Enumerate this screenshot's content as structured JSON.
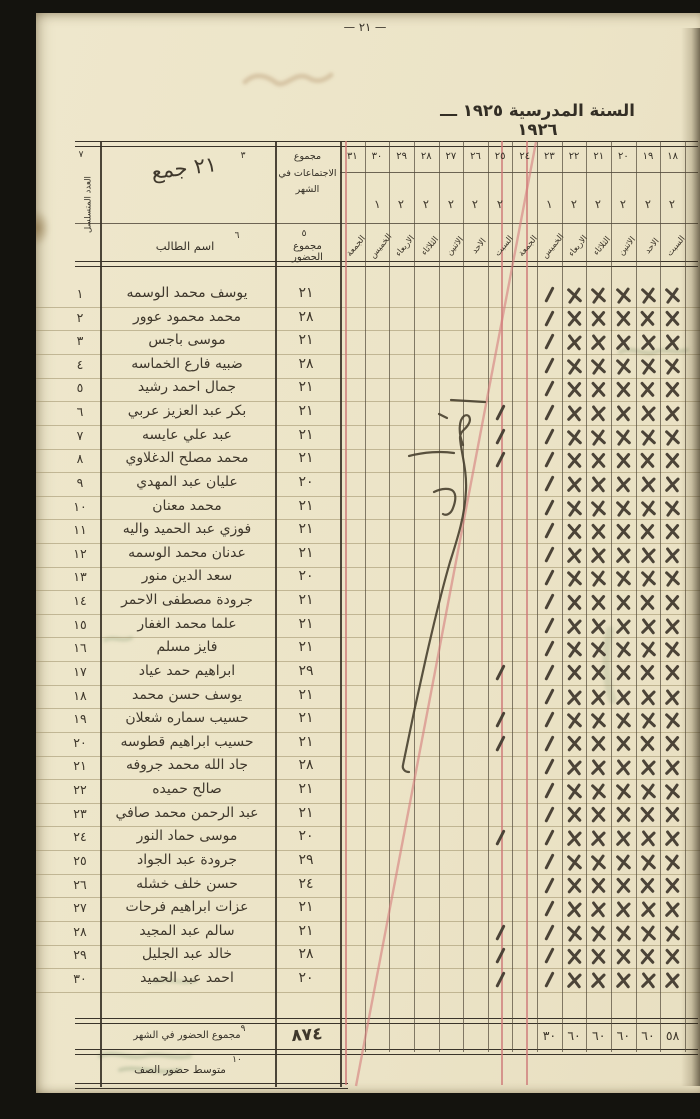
{
  "page": {
    "number_label": "— ٢١ —",
    "title": "السنة المدرسية ١٩٢٥ ـــ ١٩٢٦"
  },
  "colors": {
    "paper": "#ece4c7",
    "ink": "#4b4337",
    "ruling_red": "#cd7676",
    "scan_border": "#14130e"
  },
  "table": {
    "serial_header": {
      "footnote": "٧",
      "label": "العدد المتسلسل"
    },
    "month_cell": {
      "footnote": "٣",
      "value": "٢١ جمع"
    },
    "meetings_header": {
      "label": "مجموع الاجتماعات في الشهر"
    },
    "name_header": {
      "footnote": "٦",
      "label": "اسم الطالب"
    },
    "attendance_header": {
      "footnote": "٥",
      "label": "مجموع الحضور"
    },
    "day_columns": [
      "٣١",
      "٣٠",
      "٢٩",
      "٢٨",
      "٢٧",
      "٢٦",
      "٢٥",
      "٢٤",
      "٢٣",
      "٢٢",
      "٢١",
      "٢٠",
      "١٩",
      "١٨"
    ],
    "week_marks": [
      "",
      "١",
      "٢",
      "٢",
      "٢",
      "٢",
      "٢",
      "",
      "١",
      "٢",
      "٢",
      "٢",
      "٢",
      "٢"
    ],
    "weekday_names": [
      "الجمعة",
      "الخميس",
      "الاربعاء",
      "الثلاثاء",
      "الاثنين",
      "الاحد",
      "السبت",
      "الجمعة",
      "الخميس",
      "الاربعاء",
      "الثلاثاء",
      "الاثنين",
      "الاحد",
      "السبت"
    ],
    "mark_legend": {
      "slash": "/",
      "x": "✕"
    },
    "rows": [
      {
        "serial": "١",
        "name": "يوسف محمد الوسمه",
        "total": "٢١",
        "slash_days": [
          "٢٣"
        ],
        "x_days": [
          "٢٢",
          "٢١",
          "٢٠",
          "١٩",
          "١٨"
        ]
      },
      {
        "serial": "٢",
        "name": "محمد محمود عوور",
        "total": "٢٨",
        "slash_days": [
          "٢٣"
        ],
        "x_days": [
          "٢٢",
          "٢١",
          "٢٠",
          "١٩",
          "١٨"
        ]
      },
      {
        "serial": "٣",
        "name": "موسى باجس",
        "total": "٢١",
        "slash_days": [
          "٢٣"
        ],
        "x_days": [
          "٢٢",
          "٢١",
          "٢٠",
          "١٩",
          "١٨"
        ]
      },
      {
        "serial": "٤",
        "name": "ضبيه فارع الخماسه",
        "total": "٢٨",
        "slash_days": [
          "٢٣"
        ],
        "x_days": [
          "٢٢",
          "٢١",
          "٢٠",
          "١٩",
          "١٨"
        ]
      },
      {
        "serial": "٥",
        "name": "جمال احمد رشيد",
        "total": "٢١",
        "slash_days": [
          "٢٣"
        ],
        "x_days": [
          "٢٢",
          "٢١",
          "٢٠",
          "١٩",
          "١٨"
        ]
      },
      {
        "serial": "٦",
        "name": "بكر عبد العزيز عربي",
        "total": "٢١",
        "slash_days": [
          "٢٥",
          "٢٣"
        ],
        "x_days": [
          "٢٢",
          "٢١",
          "٢٠",
          "١٩",
          "١٨"
        ]
      },
      {
        "serial": "٧",
        "name": "عبد علي عايسه",
        "total": "٢١",
        "slash_days": [
          "٢٥",
          "٢٣"
        ],
        "x_days": [
          "٢٢",
          "٢١",
          "٢٠",
          "١٩",
          "١٨"
        ]
      },
      {
        "serial": "٨",
        "name": "محمد مصلح الدغلاوي",
        "total": "٢١",
        "slash_days": [
          "٢٥",
          "٢٣"
        ],
        "x_days": [
          "٢٢",
          "٢١",
          "٢٠",
          "١٩",
          "١٨"
        ]
      },
      {
        "serial": "٩",
        "name": "عليان عبد المهدي",
        "total": "٢٠",
        "slash_days": [
          "٢٣"
        ],
        "x_days": [
          "٢٢",
          "٢١",
          "٢٠",
          "١٩",
          "١٨"
        ]
      },
      {
        "serial": "١٠",
        "name": "محمد معنان",
        "total": "٢١",
        "slash_days": [
          "٢٣"
        ],
        "x_days": [
          "٢٢",
          "٢١",
          "٢٠",
          "١٩",
          "١٨"
        ]
      },
      {
        "serial": "١١",
        "name": "فوزي عبد الحميد واليه",
        "total": "٢١",
        "slash_days": [
          "٢٣"
        ],
        "x_days": [
          "٢٢",
          "٢١",
          "٢٠",
          "١٩",
          "١٨"
        ]
      },
      {
        "serial": "١٢",
        "name": "عدنان محمد الوسمه",
        "total": "٢١",
        "slash_days": [
          "٢٣"
        ],
        "x_days": [
          "٢٢",
          "٢١",
          "٢٠",
          "١٩",
          "١٨"
        ]
      },
      {
        "serial": "١٣",
        "name": "سعد الدين منور",
        "total": "٢٠",
        "slash_days": [
          "٢٣"
        ],
        "x_days": [
          "٢٢",
          "٢١",
          "٢٠",
          "١٩",
          "١٨"
        ]
      },
      {
        "serial": "١٤",
        "name": "جرودة مصطفى الاحمر",
        "total": "٢١",
        "slash_days": [
          "٢٣"
        ],
        "x_days": [
          "٢٢",
          "٢١",
          "٢٠",
          "١٩",
          "١٨"
        ]
      },
      {
        "serial": "١٥",
        "name": "علما محمد الغفار",
        "total": "٢١",
        "slash_days": [
          "٢٣"
        ],
        "x_days": [
          "٢٢",
          "٢١",
          "٢٠",
          "١٩",
          "١٨"
        ]
      },
      {
        "serial": "١٦",
        "name": "فايز مسلم",
        "total": "٢١",
        "slash_days": [
          "٢٣"
        ],
        "x_days": [
          "٢٢",
          "٢١",
          "٢٠",
          "١٩",
          "١٨"
        ]
      },
      {
        "serial": "١٧",
        "name": "ابراهيم حمد عياد",
        "total": "٢٩",
        "slash_days": [
          "٢٥",
          "٢٣"
        ],
        "x_days": [
          "٢٢",
          "٢١",
          "٢٠",
          "١٩",
          "١٨"
        ]
      },
      {
        "serial": "١٨",
        "name": "يوسف حسن محمد",
        "total": "٢١",
        "slash_days": [
          "٢٣"
        ],
        "x_days": [
          "٢٢",
          "٢١",
          "٢٠",
          "١٩",
          "١٨"
        ]
      },
      {
        "serial": "١٩",
        "name": "حسيب سماره شعلان",
        "total": "٢١",
        "slash_days": [
          "٢٥",
          "٢٣"
        ],
        "x_days": [
          "٢٢",
          "٢١",
          "٢٠",
          "١٩",
          "١٨"
        ]
      },
      {
        "serial": "٢٠",
        "name": "حسيب ابراهيم قطوسه",
        "total": "٢١",
        "slash_days": [
          "٢٥",
          "٢٣"
        ],
        "x_days": [
          "٢٢",
          "٢١",
          "٢٠",
          "١٩",
          "١٨"
        ]
      },
      {
        "serial": "٢١",
        "name": "جاد الله محمد جروفه",
        "total": "٢٨",
        "slash_days": [
          "٢٣"
        ],
        "x_days": [
          "٢٢",
          "٢١",
          "٢٠",
          "١٩",
          "١٨"
        ]
      },
      {
        "serial": "٢٢",
        "name": "صالح حميده",
        "total": "٢١",
        "slash_days": [
          "٢٣"
        ],
        "x_days": [
          "٢٢",
          "٢١",
          "٢٠",
          "١٩",
          "١٨"
        ]
      },
      {
        "serial": "٢٣",
        "name": "عبد الرحمن محمد صافي",
        "total": "٢١",
        "slash_days": [
          "٢٣"
        ],
        "x_days": [
          "٢٢",
          "٢١",
          "٢٠",
          "١٩",
          "١٨"
        ]
      },
      {
        "serial": "٢٤",
        "name": "موسى حماد النور",
        "total": "٢٠",
        "slash_days": [
          "٢٥",
          "٢٣"
        ],
        "x_days": [
          "٢٢",
          "٢١",
          "٢٠",
          "١٩",
          "١٨"
        ]
      },
      {
        "serial": "٢٥",
        "name": "جرودة عبد الجواد",
        "total": "٢٩",
        "slash_days": [
          "٢٣"
        ],
        "x_days": [
          "٢٢",
          "٢١",
          "٢٠",
          "١٩",
          "١٨"
        ]
      },
      {
        "serial": "٢٦",
        "name": "حسن خلف خشله",
        "total": "٢٤",
        "slash_days": [
          "٢٣"
        ],
        "x_days": [
          "٢٢",
          "٢١",
          "٢٠",
          "١٩",
          "١٨"
        ]
      },
      {
        "serial": "٢٧",
        "name": "عزات ابراهيم فرحات",
        "total": "٢١",
        "slash_days": [
          "٢٣"
        ],
        "x_days": [
          "٢٢",
          "٢١",
          "٢٠",
          "١٩",
          "١٨"
        ]
      },
      {
        "serial": "٢٨",
        "name": "سالم عبد المجيد",
        "total": "٢١",
        "slash_days": [
          "٢٥",
          "٢٣"
        ],
        "x_days": [
          "٢٢",
          "٢١",
          "٢٠",
          "١٩",
          "١٨"
        ]
      },
      {
        "serial": "٢٩",
        "name": "خالد عبد الجليل",
        "total": "٢٨",
        "slash_days": [
          "٢٥",
          "٢٣"
        ],
        "x_days": [
          "٢٢",
          "٢١",
          "٢٠",
          "١٩",
          "١٨"
        ]
      },
      {
        "serial": "٣٠",
        "name": "احمد عبد الحميد",
        "total": "٢٠",
        "slash_days": [
          "٢٥",
          "٢٣"
        ],
        "x_days": [
          "٢٢",
          "٢١",
          "٢٠",
          "١٩",
          "١٨"
        ]
      }
    ]
  },
  "footer": {
    "monthly_total_row": {
      "footnote": "٩",
      "label": "مجموع الحضور في الشهر",
      "total": "٨٧٤",
      "day_totals": {
        "٢٣": "٣٠",
        "٢٢": "٦٠",
        "٢١": "٦٠",
        "٢٠": "٦٠",
        "١٩": "٦٠",
        "١٨": "٥٨"
      }
    },
    "average_row": {
      "footnote": "١٠",
      "label": "متوسط حضور الصف",
      "value": ""
    }
  }
}
